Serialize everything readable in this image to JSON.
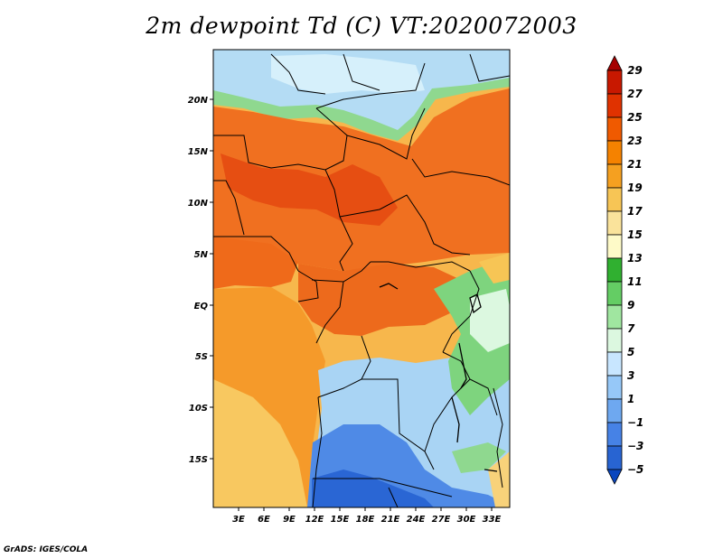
{
  "title": "2m dewpoint Td (C) VT:2020072003",
  "credit": "GrADS: IGES/COLA",
  "map": {
    "lat_labels": [
      "20N",
      "15N",
      "10N",
      "5N",
      "EQ",
      "5S",
      "10S",
      "15S"
    ],
    "lon_labels": [
      "3E",
      "6E",
      "9E",
      "12E",
      "15E",
      "18E",
      "21E",
      "24E",
      "27E",
      "30E",
      "33E"
    ]
  },
  "colorbar": {
    "labels": [
      "29",
      "27",
      "25",
      "23",
      "21",
      "19",
      "17",
      "15",
      "13",
      "11",
      "9",
      "7",
      "5",
      "3",
      "1",
      "−1",
      "−3",
      "−5"
    ],
    "colors": [
      "#a50000",
      "#c81800",
      "#e03200",
      "#f05a00",
      "#f58200",
      "#f5a020",
      "#f7c555",
      "#fae39b",
      "#fefac8",
      "#30b030",
      "#64cd64",
      "#a0e6a0",
      "#dcf8e0",
      "#c8e6ff",
      "#96c8f8",
      "#6ea8f0",
      "#4682e6",
      "#2864d2",
      "#0a46be"
    ]
  }
}
